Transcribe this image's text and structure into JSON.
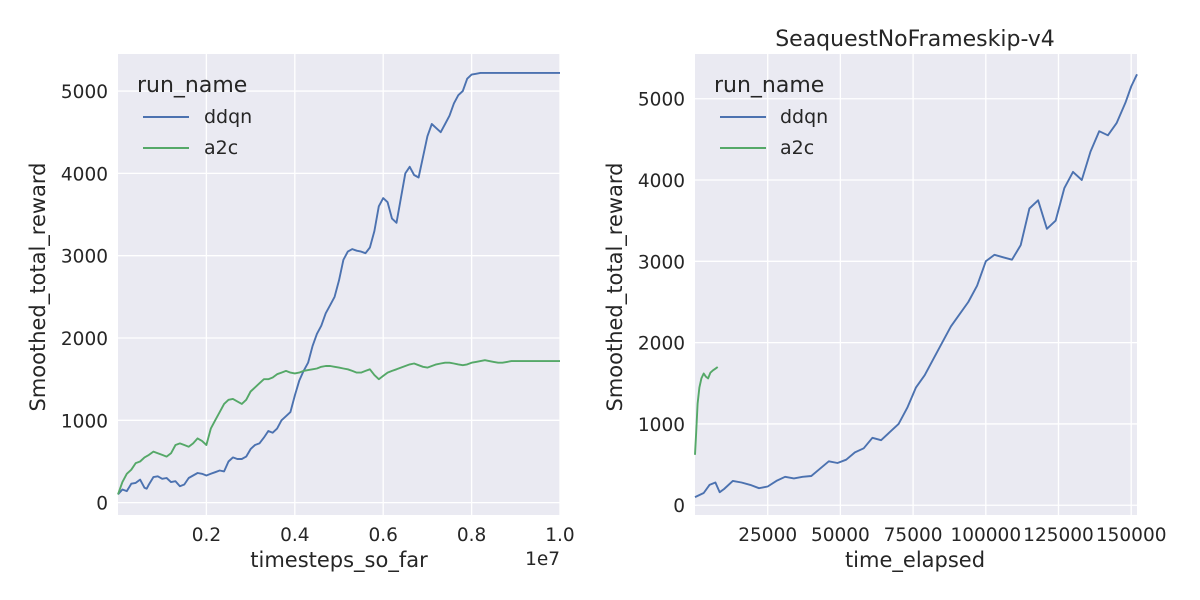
{
  "colors": {
    "panel_bg": "#EAEAF2",
    "grid": "#FFFFFF",
    "ddqn": "#4C72B0",
    "a2c": "#55A868",
    "text": "#262626"
  },
  "chart_data": [
    {
      "type": "line",
      "title": "",
      "xlabel": "timesteps_so_far",
      "ylabel": "Smoothed_total_reward",
      "x_offset_label": "1e7",
      "xlim": [
        0,
        1.0
      ],
      "ylim": [
        -150,
        5450
      ],
      "xticks": [
        0.2,
        0.4,
        0.6,
        0.8,
        1.0
      ],
      "xtick_labels": [
        "0.2",
        "0.4",
        "0.6",
        "0.8",
        "1.0"
      ],
      "yticks": [
        0,
        1000,
        2000,
        3000,
        4000,
        5000
      ],
      "ytick_labels": [
        "0",
        "1000",
        "2000",
        "3000",
        "4000",
        "5000"
      ],
      "grid": true,
      "legend": {
        "title": "run_name",
        "position": "top-left",
        "entries": [
          "ddqn",
          "a2c"
        ]
      },
      "series": [
        {
          "name": "ddqn",
          "x": [
            0.0,
            0.01,
            0.02,
            0.03,
            0.04,
            0.05,
            0.06,
            0.065,
            0.07,
            0.08,
            0.09,
            0.1,
            0.11,
            0.12,
            0.13,
            0.14,
            0.15,
            0.16,
            0.17,
            0.18,
            0.19,
            0.2,
            0.21,
            0.22,
            0.23,
            0.24,
            0.25,
            0.26,
            0.27,
            0.28,
            0.29,
            0.3,
            0.31,
            0.32,
            0.33,
            0.34,
            0.35,
            0.36,
            0.37,
            0.38,
            0.39,
            0.4,
            0.41,
            0.42,
            0.43,
            0.44,
            0.45,
            0.46,
            0.47,
            0.48,
            0.49,
            0.5,
            0.51,
            0.52,
            0.53,
            0.54,
            0.55,
            0.56,
            0.57,
            0.58,
            0.59,
            0.6,
            0.61,
            0.62,
            0.63,
            0.64,
            0.65,
            0.66,
            0.67,
            0.68,
            0.69,
            0.7,
            0.71,
            0.72,
            0.73,
            0.74,
            0.75,
            0.76,
            0.77,
            0.78,
            0.79,
            0.8,
            0.81,
            0.82,
            0.83,
            0.84,
            0.85,
            0.86,
            0.87,
            0.88,
            0.89,
            0.9,
            0.91,
            0.92,
            0.93,
            0.94,
            0.95,
            0.96,
            0.97,
            0.98,
            0.99,
            1.0
          ],
          "values": [
            100,
            160,
            140,
            230,
            240,
            280,
            180,
            170,
            220,
            310,
            320,
            290,
            300,
            250,
            260,
            200,
            220,
            300,
            330,
            360,
            350,
            330,
            350,
            370,
            390,
            380,
            500,
            550,
            530,
            530,
            560,
            650,
            700,
            720,
            790,
            870,
            850,
            900,
            1000,
            1050,
            1100,
            1300,
            1480,
            1600,
            1700,
            1900,
            2050,
            2150,
            2300,
            2400,
            2500,
            2700,
            2950,
            3050,
            3080,
            3060,
            3050,
            3030,
            3100,
            3300,
            3600,
            3700,
            3650,
            3450,
            3400,
            3700,
            4000,
            4080,
            3980,
            3950,
            4200,
            4450,
            4600,
            4550,
            4500,
            4600,
            4700,
            4850,
            4950,
            5000,
            5150,
            5200,
            5210,
            5220,
            5220,
            5220,
            5220,
            5220,
            5220,
            5220,
            5220,
            5220,
            5220,
            5220,
            5220,
            5220,
            5220,
            5220,
            5220,
            5220,
            5220,
            5220
          ]
        },
        {
          "name": "a2c",
          "x": [
            0.0,
            0.01,
            0.02,
            0.03,
            0.04,
            0.05,
            0.06,
            0.07,
            0.08,
            0.09,
            0.1,
            0.11,
            0.12,
            0.13,
            0.14,
            0.15,
            0.16,
            0.17,
            0.18,
            0.19,
            0.2,
            0.21,
            0.22,
            0.23,
            0.24,
            0.25,
            0.26,
            0.27,
            0.28,
            0.29,
            0.3,
            0.31,
            0.32,
            0.33,
            0.34,
            0.35,
            0.36,
            0.37,
            0.38,
            0.39,
            0.4,
            0.41,
            0.42,
            0.43,
            0.44,
            0.45,
            0.46,
            0.47,
            0.48,
            0.49,
            0.5,
            0.51,
            0.52,
            0.53,
            0.54,
            0.55,
            0.56,
            0.57,
            0.58,
            0.59,
            0.6,
            0.61,
            0.62,
            0.63,
            0.64,
            0.65,
            0.66,
            0.67,
            0.68,
            0.69,
            0.7,
            0.71,
            0.72,
            0.73,
            0.74,
            0.75,
            0.76,
            0.77,
            0.78,
            0.79,
            0.8,
            0.81,
            0.82,
            0.83,
            0.84,
            0.85,
            0.86,
            0.87,
            0.88,
            0.89,
            0.9,
            0.91,
            0.92,
            0.93,
            0.94,
            0.95,
            0.96,
            0.97,
            0.98,
            0.99,
            1.0
          ],
          "values": [
            100,
            250,
            350,
            400,
            480,
            500,
            550,
            580,
            620,
            600,
            580,
            560,
            600,
            700,
            720,
            700,
            680,
            720,
            780,
            750,
            700,
            900,
            1000,
            1100,
            1200,
            1250,
            1260,
            1230,
            1200,
            1250,
            1350,
            1400,
            1450,
            1500,
            1500,
            1520,
            1560,
            1580,
            1600,
            1580,
            1570,
            1580,
            1600,
            1610,
            1620,
            1630,
            1650,
            1660,
            1660,
            1650,
            1640,
            1630,
            1620,
            1600,
            1580,
            1580,
            1600,
            1620,
            1550,
            1500,
            1540,
            1580,
            1600,
            1620,
            1640,
            1660,
            1680,
            1690,
            1670,
            1650,
            1640,
            1660,
            1680,
            1690,
            1700,
            1700,
            1690,
            1680,
            1670,
            1680,
            1700,
            1710,
            1720,
            1730,
            1720,
            1710,
            1700,
            1700,
            1710,
            1720,
            1720,
            1720,
            1720,
            1720,
            1720,
            1720,
            1720,
            1720,
            1720,
            1720,
            1720
          ]
        }
      ]
    },
    {
      "type": "line",
      "title": "SeaquestNoFrameskip-v4",
      "xlabel": "time_elapsed",
      "ylabel": "Smoothed_total_reward",
      "xlim": [
        0,
        152000
      ],
      "ylim": [
        -120,
        5550
      ],
      "xticks": [
        25000,
        50000,
        75000,
        100000,
        125000,
        150000
      ],
      "xtick_labels": [
        "25000",
        "50000",
        "75000",
        "100000",
        "125000",
        "150000"
      ],
      "yticks": [
        0,
        1000,
        2000,
        3000,
        4000,
        5000
      ],
      "ytick_labels": [
        "0",
        "1000",
        "2000",
        "3000",
        "4000",
        "5000"
      ],
      "grid": true,
      "legend": {
        "title": "run_name",
        "position": "top-left",
        "entries": [
          "ddqn",
          "a2c"
        ]
      },
      "series": [
        {
          "name": "ddqn",
          "x": [
            0,
            3000,
            5000,
            7000,
            8500,
            10000,
            13000,
            16000,
            19000,
            22000,
            25000,
            28000,
            31000,
            34000,
            37000,
            40000,
            43000,
            46000,
            49000,
            52000,
            55000,
            58000,
            61000,
            64000,
            67000,
            70000,
            73000,
            76000,
            79000,
            82000,
            85000,
            88000,
            91000,
            94000,
            97000,
            100000,
            103000,
            106000,
            109000,
            112000,
            115000,
            118000,
            121000,
            124000,
            127000,
            130000,
            133000,
            136000,
            139000,
            142000,
            145000,
            148000,
            150000,
            152000
          ],
          "values": [
            100,
            150,
            250,
            280,
            160,
            200,
            300,
            280,
            250,
            210,
            230,
            300,
            350,
            330,
            350,
            360,
            450,
            540,
            520,
            560,
            650,
            700,
            830,
            800,
            900,
            1000,
            1200,
            1450,
            1600,
            1800,
            2000,
            2200,
            2350,
            2500,
            2700,
            3000,
            3080,
            3050,
            3020,
            3200,
            3650,
            3750,
            3400,
            3500,
            3900,
            4100,
            4000,
            4350,
            4600,
            4550,
            4700,
            4950,
            5150,
            5300
          ]
        },
        {
          "name": "a2c",
          "x": [
            0,
            400,
            900,
            1500,
            2200,
            3000,
            3800,
            4500,
            5300,
            6200,
            7000,
            7800
          ],
          "values": [
            620,
            900,
            1250,
            1450,
            1560,
            1620,
            1580,
            1560,
            1630,
            1660,
            1680,
            1700
          ]
        }
      ]
    }
  ]
}
